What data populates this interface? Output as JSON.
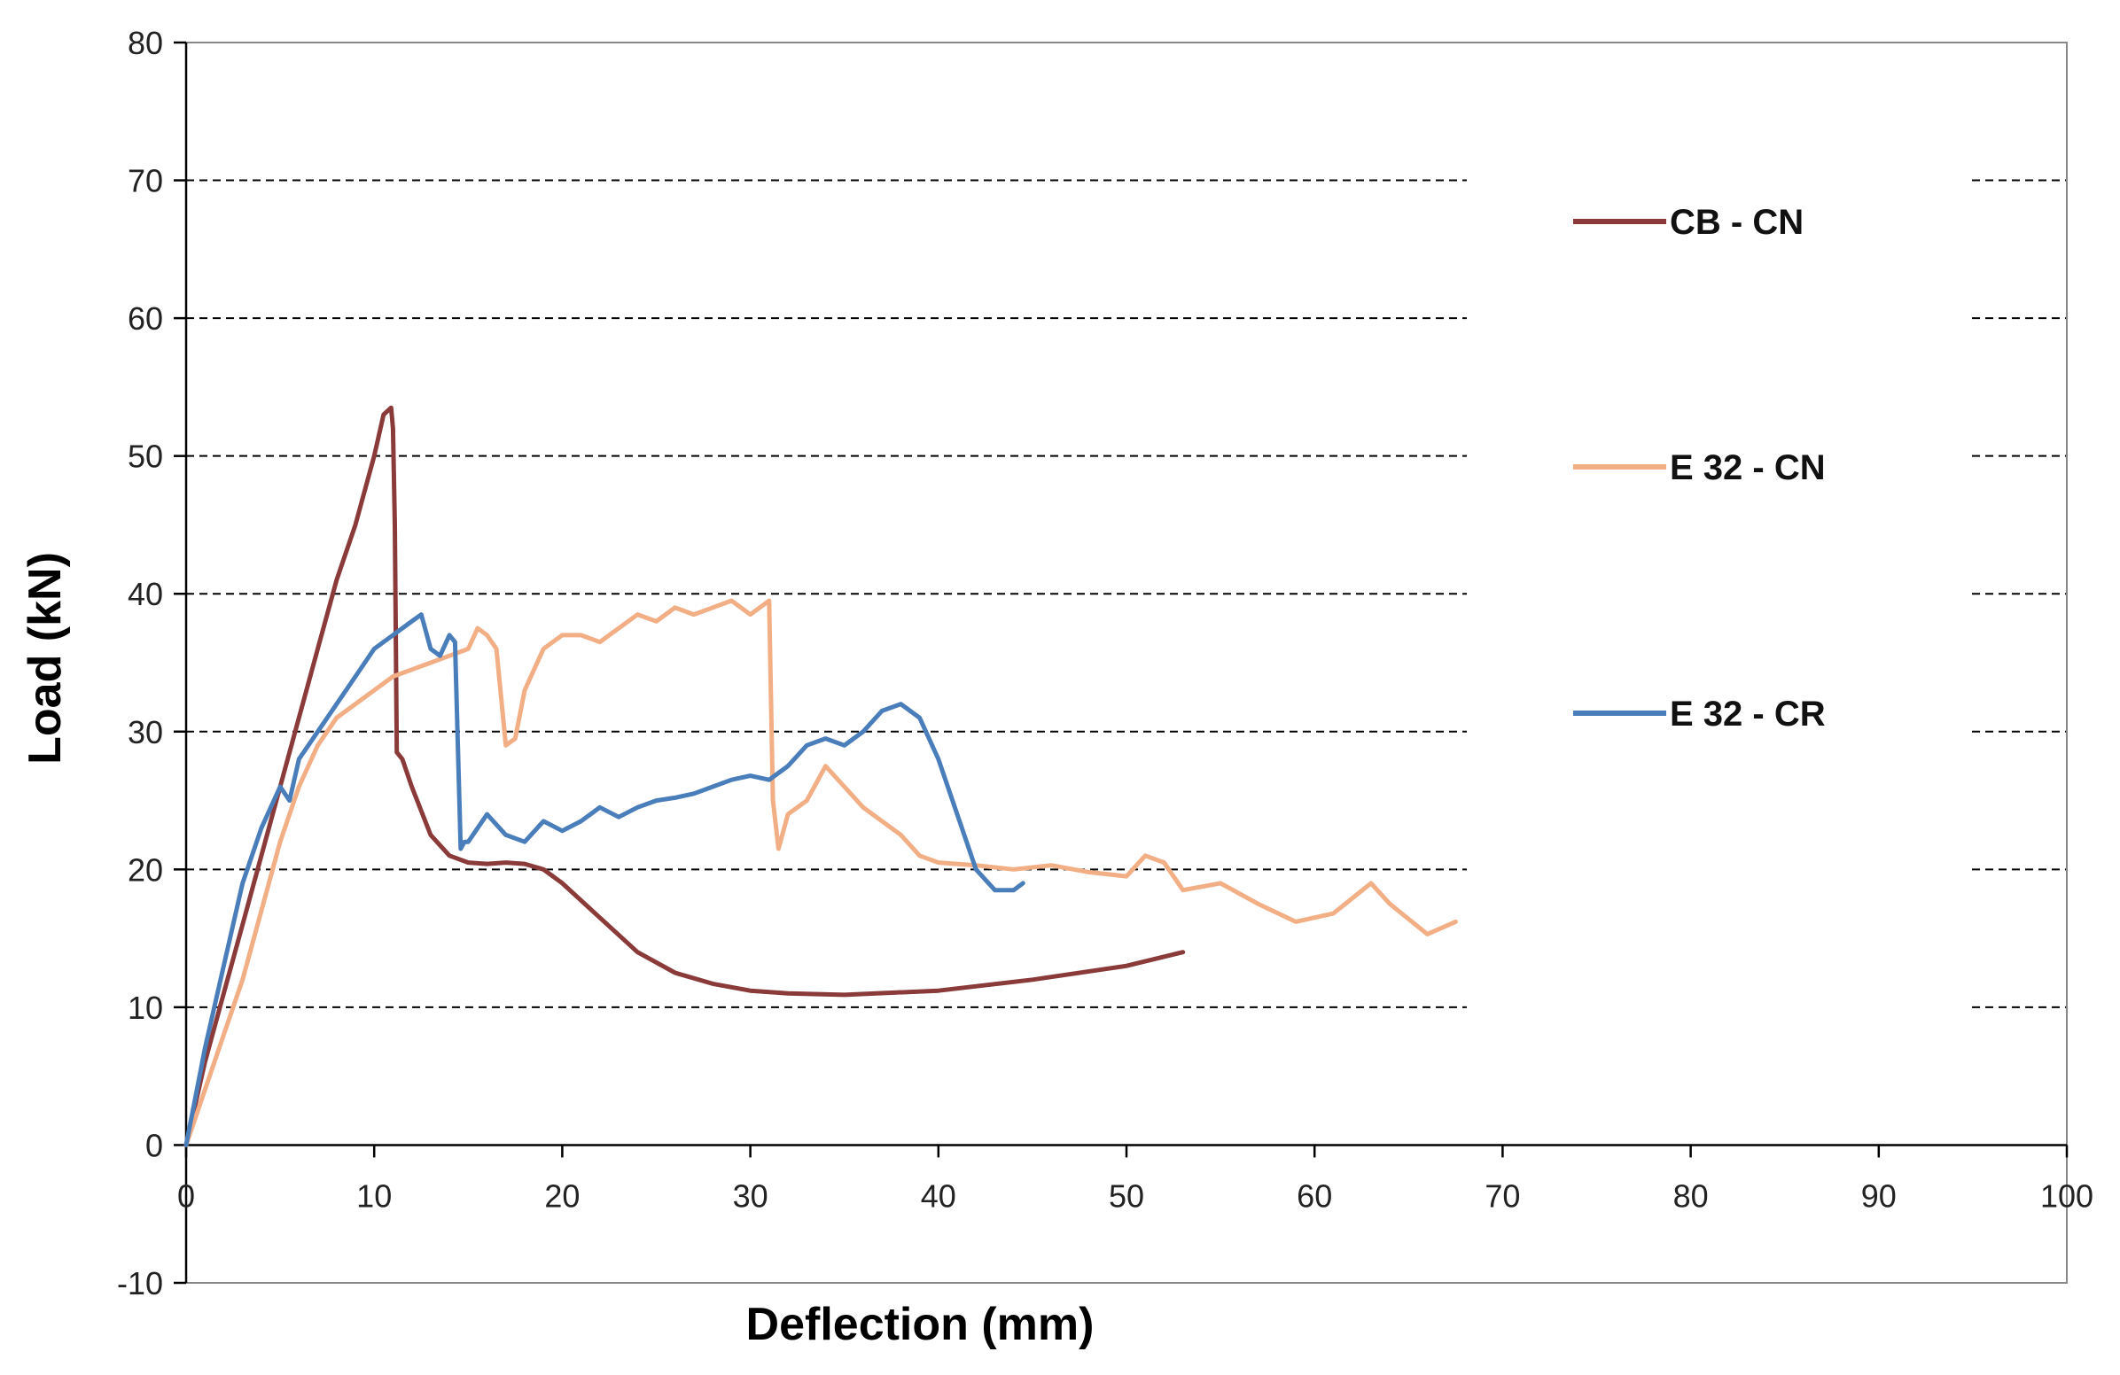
{
  "chart_data": {
    "type": "line",
    "title": "",
    "xlabel": "Deflection (mm)",
    "ylabel": "Load (kN)",
    "xlim": [
      0,
      100
    ],
    "ylim": [
      -10,
      80
    ],
    "x_ticks": [
      0,
      10,
      20,
      30,
      40,
      50,
      60,
      70,
      80,
      90,
      100
    ],
    "y_ticks": [
      -10,
      0,
      10,
      20,
      30,
      40,
      50,
      60,
      70,
      80
    ],
    "x_tick_labels": [
      "0",
      "10",
      "20",
      "30",
      "40",
      "50",
      "60",
      "70",
      "80",
      "90",
      "100"
    ],
    "y_tick_labels": [
      "-10",
      "0",
      "10",
      "20",
      "30",
      "40",
      "50",
      "60",
      "70",
      "80"
    ],
    "grid": "horizontal dashed",
    "legend_position": "right",
    "series": [
      {
        "name": "CB - CN",
        "color": "#8B3A3A",
        "x": [
          0,
          1,
          2,
          3,
          4,
          5,
          6,
          7,
          8,
          9,
          10,
          10.5,
          10.9,
          11.0,
          11.1,
          11.2,
          11.5,
          12,
          13,
          14,
          15,
          16,
          17,
          18,
          19,
          20,
          22,
          24,
          26,
          28,
          30,
          32,
          35,
          40,
          45,
          50,
          53
        ],
        "y": [
          0,
          6,
          11,
          16,
          21,
          26,
          31,
          36,
          41,
          45,
          50,
          53,
          53.5,
          52,
          45,
          28.5,
          28,
          26,
          22.5,
          21,
          20.5,
          20.4,
          20.5,
          20.4,
          20,
          19,
          16.5,
          14,
          12.5,
          11.7,
          11.2,
          11,
          10.9,
          11.2,
          12,
          13,
          14
        ]
      },
      {
        "name": "E 32 - CN",
        "color": "#F2AE84",
        "x": [
          0,
          1,
          2,
          3,
          4,
          5,
          6,
          7,
          8,
          9,
          10,
          11,
          12,
          13,
          14,
          15,
          15.5,
          16,
          16.5,
          17,
          17.5,
          18,
          19,
          20,
          21,
          22,
          23,
          24,
          25,
          26,
          27,
          28,
          29,
          30,
          31,
          31.2,
          31.5,
          32,
          33,
          34,
          35,
          36,
          37,
          38,
          39,
          40,
          42,
          44,
          46,
          48,
          50,
          51,
          52,
          53,
          55,
          57,
          59,
          61,
          63,
          64,
          66,
          67.5
        ],
        "y": [
          0,
          4,
          8,
          12,
          17,
          22,
          26,
          29,
          31,
          32,
          33,
          34,
          34.5,
          35,
          35.5,
          36,
          37.5,
          37,
          36,
          29,
          29.5,
          33,
          36,
          37,
          37,
          36.5,
          37.5,
          38.5,
          38,
          39,
          38.5,
          39,
          39.5,
          38.5,
          39.5,
          25,
          21.5,
          24,
          25,
          27.5,
          26,
          24.5,
          23.5,
          22.5,
          21,
          20.5,
          20.3,
          20,
          20.3,
          19.8,
          19.5,
          21,
          20.5,
          18.5,
          19,
          17.5,
          16.2,
          16.8,
          19,
          17.5,
          15.3,
          16.2
        ]
      },
      {
        "name": "E 32 - CR",
        "color": "#4A7EBB",
        "x": [
          0,
          1,
          2,
          3,
          4,
          5,
          5.5,
          6,
          7,
          8,
          9,
          10,
          11,
          12,
          12.5,
          13,
          13.5,
          14,
          14.3,
          14.6,
          14.8,
          15,
          15.5,
          16,
          17,
          18,
          19,
          20,
          21,
          22,
          23,
          24,
          25,
          26,
          27,
          28,
          29,
          30,
          31,
          32,
          33,
          34,
          35,
          36,
          37,
          38,
          39,
          40,
          41,
          42,
          43,
          44,
          44.5
        ],
        "y": [
          0,
          7,
          13,
          19,
          23,
          26,
          25,
          28,
          30,
          32,
          34,
          36,
          37,
          38,
          38.5,
          36,
          35.5,
          37,
          36.5,
          21.5,
          22,
          22,
          23,
          24,
          22.5,
          22,
          23.5,
          22.8,
          23.5,
          24.5,
          23.8,
          24.5,
          25,
          25.2,
          25.5,
          26,
          26.5,
          26.8,
          26.5,
          27.5,
          29,
          29.5,
          29,
          30,
          31.5,
          32,
          31,
          28,
          24,
          20,
          18.5,
          18.5,
          19
        ]
      }
    ]
  }
}
